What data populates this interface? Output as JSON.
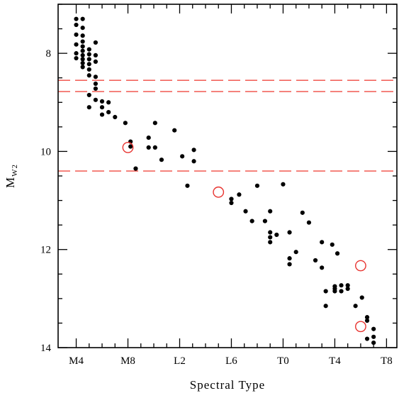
{
  "chart_data": {
    "type": "scatter",
    "xlabel": "Spectral Type",
    "ylabel": "M",
    "ylabel_sub": "W2",
    "x_tick_labels": [
      {
        "value": 0,
        "label": "M4"
      },
      {
        "value": 4,
        "label": "M8"
      },
      {
        "value": 8,
        "label": "L2"
      },
      {
        "value": 12,
        "label": "L6"
      },
      {
        "value": 16,
        "label": "T0"
      },
      {
        "value": 20,
        "label": "T4"
      },
      {
        "value": 24,
        "label": "T8"
      }
    ],
    "y_tick_labels": [
      {
        "value": 8,
        "label": "8"
      },
      {
        "value": 10,
        "label": "10"
      },
      {
        "value": 12,
        "label": "12"
      },
      {
        "value": 14,
        "label": "14"
      }
    ],
    "xlim": [
      -1.4,
      24.8
    ],
    "ylim": [
      14,
      7
    ],
    "y_inverted": true,
    "grid": false,
    "colors": {
      "points": "#000000",
      "highlight": "#e8332f",
      "lines": "#f04a42"
    },
    "reference_lines": [
      {
        "y": 8.55,
        "style": "dashed",
        "color": "#f04a42"
      },
      {
        "y": 8.78,
        "style": "dashed",
        "color": "#f04a42"
      },
      {
        "y": 10.4,
        "style": "dashed",
        "color": "#f04a42"
      }
    ],
    "series": [
      {
        "marker": "filled-circle",
        "color": "#000000",
        "points": [
          [
            0,
            7.3
          ],
          [
            0,
            7.42
          ],
          [
            0,
            7.62
          ],
          [
            0,
            7.82
          ],
          [
            0,
            8.0
          ],
          [
            0,
            8.1
          ],
          [
            0.5,
            7.3
          ],
          [
            0.5,
            7.48
          ],
          [
            0.5,
            7.64
          ],
          [
            0.5,
            7.76
          ],
          [
            0.5,
            7.86
          ],
          [
            0.5,
            7.95
          ],
          [
            0.5,
            8.04
          ],
          [
            0.5,
            8.12
          ],
          [
            0.5,
            8.2
          ],
          [
            0.5,
            8.28
          ],
          [
            1,
            7.92
          ],
          [
            1,
            8.02
          ],
          [
            1,
            8.12
          ],
          [
            1,
            8.22
          ],
          [
            1,
            8.33
          ],
          [
            1,
            8.45
          ],
          [
            1,
            8.85
          ],
          [
            1,
            9.1
          ],
          [
            1.5,
            7.78
          ],
          [
            1.5,
            8.04
          ],
          [
            1.5,
            8.17
          ],
          [
            1.5,
            8.48
          ],
          [
            1.5,
            8.62
          ],
          [
            1.5,
            8.72
          ],
          [
            1.5,
            8.95
          ],
          [
            2,
            8.98
          ],
          [
            2,
            9.1
          ],
          [
            2,
            9.25
          ],
          [
            2.5,
            9.0
          ],
          [
            2.5,
            9.2
          ],
          [
            3,
            9.3
          ],
          [
            3.8,
            9.42
          ],
          [
            4.2,
            9.8
          ],
          [
            4.2,
            9.9
          ],
          [
            4.6,
            10.35
          ],
          [
            5.6,
            9.72
          ],
          [
            5.6,
            9.92
          ],
          [
            6.1,
            9.42
          ],
          [
            6.1,
            9.92
          ],
          [
            6.6,
            10.17
          ],
          [
            7.6,
            9.57
          ],
          [
            8.2,
            10.1
          ],
          [
            8.6,
            10.7
          ],
          [
            9.1,
            9.97
          ],
          [
            9.1,
            10.2
          ],
          [
            12,
            10.97
          ],
          [
            12,
            11.05
          ],
          [
            12.6,
            10.88
          ],
          [
            13.1,
            11.22
          ],
          [
            13.6,
            11.42
          ],
          [
            14,
            10.7
          ],
          [
            14.6,
            11.42
          ],
          [
            15,
            11.22
          ],
          [
            15,
            11.65
          ],
          [
            15,
            11.75
          ],
          [
            15,
            11.85
          ],
          [
            15.5,
            11.7
          ],
          [
            16,
            10.67
          ],
          [
            16.5,
            11.65
          ],
          [
            16.5,
            12.18
          ],
          [
            16.5,
            12.3
          ],
          [
            17,
            12.05
          ],
          [
            17.5,
            11.25
          ],
          [
            18,
            11.45
          ],
          [
            18.5,
            12.22
          ],
          [
            19,
            11.85
          ],
          [
            19,
            12.37
          ],
          [
            19.8,
            11.9
          ],
          [
            20.2,
            12.08
          ],
          [
            20,
            12.75
          ],
          [
            20,
            12.8
          ],
          [
            20,
            12.85
          ],
          [
            20.5,
            12.73
          ],
          [
            20.5,
            12.85
          ],
          [
            21,
            12.73
          ],
          [
            21,
            12.8
          ],
          [
            21.6,
            13.15
          ],
          [
            22.1,
            12.98
          ],
          [
            22.5,
            13.38
          ],
          [
            22.5,
            13.45
          ],
          [
            22.5,
            13.82
          ],
          [
            23,
            13.62
          ],
          [
            23,
            13.78
          ],
          [
            23,
            13.9
          ],
          [
            19.3,
            12.85
          ],
          [
            19.3,
            13.15
          ]
        ]
      },
      {
        "marker": "open-circle",
        "color": "#e8332f",
        "points": [
          [
            4.0,
            9.92
          ],
          [
            11.0,
            10.83
          ],
          [
            22.0,
            12.33
          ],
          [
            22.0,
            13.57
          ]
        ]
      }
    ]
  }
}
